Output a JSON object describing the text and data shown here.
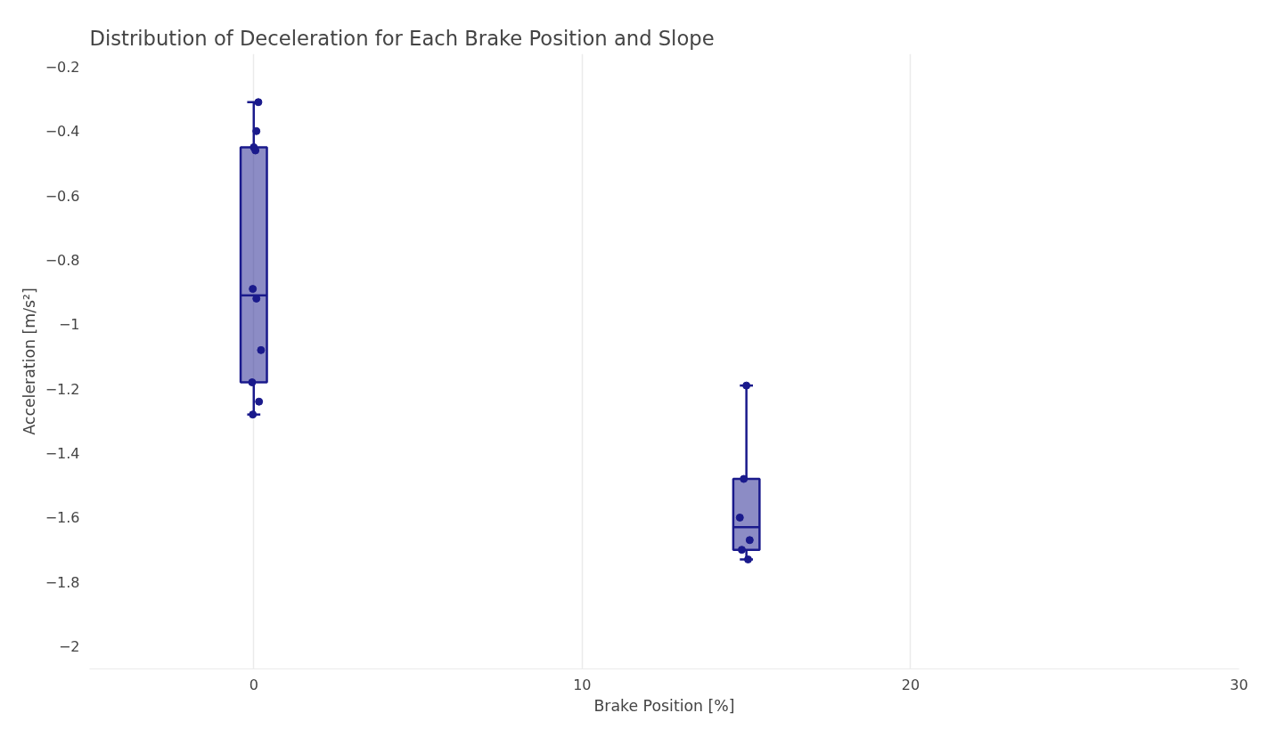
{
  "chart_data": {
    "type": "box",
    "title": "Distribution of Deceleration for Each Brake Position and Slope",
    "xlabel": "Brake Position [%]",
    "ylabel": "Acceleration [m/s²]",
    "x": [
      0,
      15
    ],
    "boxes": [
      {
        "low": -1.28,
        "q1": -1.18,
        "median": -0.91,
        "q3": -0.45,
        "high": -0.31
      },
      {
        "low": -1.73,
        "q1": -1.7,
        "median": -1.63,
        "q3": -1.48,
        "high": -1.19
      }
    ],
    "color": "#1a1a8c",
    "series": [
      {
        "type": "scatter",
        "color": "#1a1a8c",
        "x": [
          0.14,
          0.08,
          0.0,
          0.05,
          -0.03,
          0.08,
          0.22,
          -0.05,
          0.16,
          -0.03,
          15.0,
          14.92,
          14.8,
          15.1,
          14.86,
          15.05
        ],
        "values": [
          -0.31,
          -0.4,
          -0.45,
          -0.46,
          -0.89,
          -0.92,
          -1.08,
          -1.18,
          -1.24,
          -1.28,
          -1.19,
          -1.48,
          -1.6,
          -1.67,
          -1.7,
          -1.73
        ]
      }
    ],
    "marker": "circle",
    "xlim": [
      -5,
      30
    ],
    "ylim": [
      -2.07,
      -0.16
    ],
    "xticks": [
      0,
      10,
      20,
      30
    ],
    "yticks": [
      {
        "value": -0.2,
        "label": "−0.2"
      },
      {
        "value": -0.4,
        "label": "−0.4"
      },
      {
        "value": -0.6,
        "label": "−0.6"
      },
      {
        "value": -0.8,
        "label": "−0.8"
      },
      {
        "value": -1,
        "label": "−1"
      },
      {
        "value": -1.2,
        "label": "−1.2"
      },
      {
        "value": -1.4,
        "label": "−1.4"
      },
      {
        "value": -1.6,
        "label": "−1.6"
      },
      {
        "value": -1.8,
        "label": "−1.8"
      },
      {
        "value": -2,
        "label": "−2"
      }
    ],
    "grid": "x"
  }
}
